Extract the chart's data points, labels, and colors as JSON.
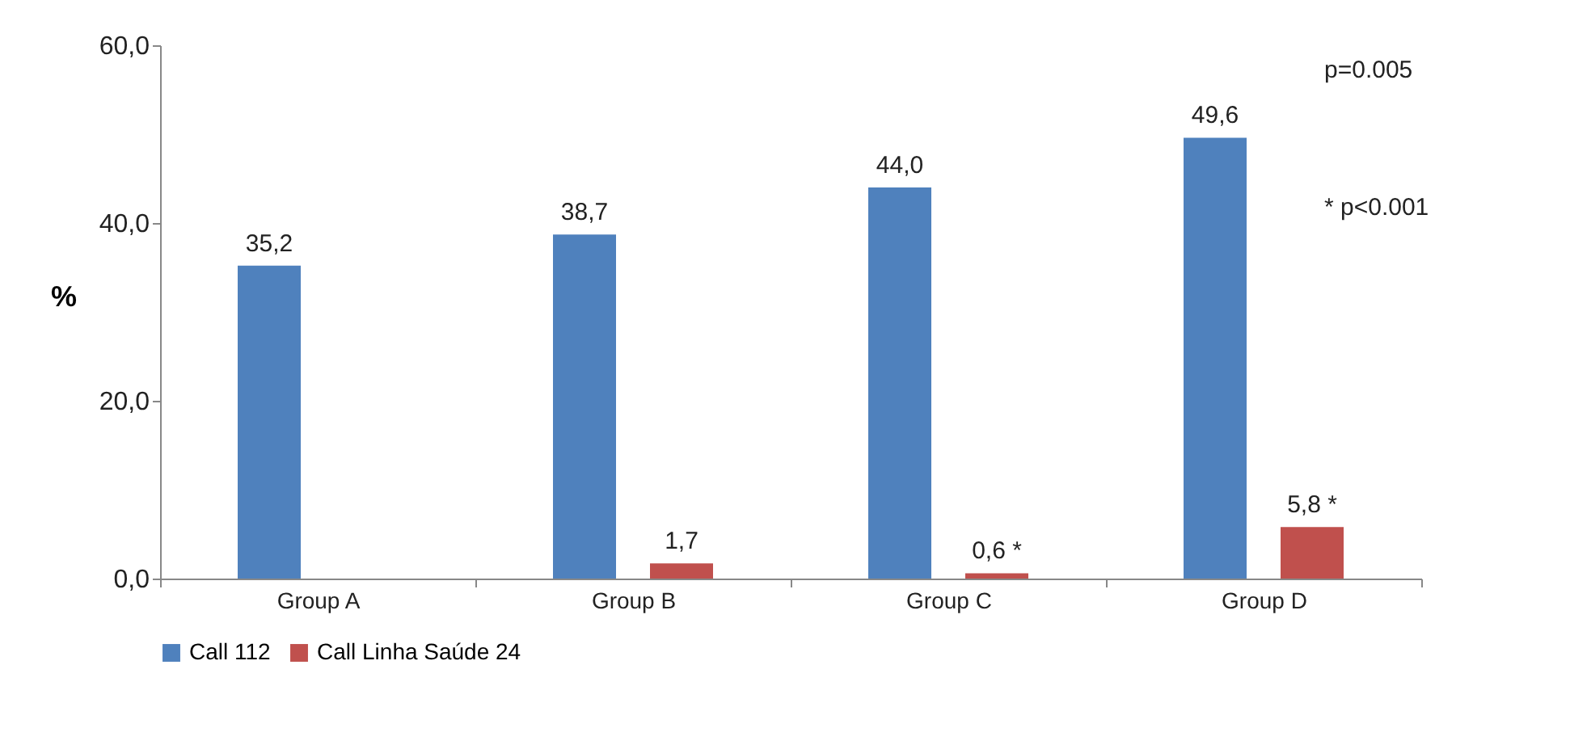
{
  "chart_data": {
    "type": "bar",
    "ylabel": "%",
    "categories": [
      "Group A",
      "Group B",
      "Group C",
      "Group D"
    ],
    "series": [
      {
        "name": "Call 112",
        "color": "#4f81bd",
        "values": [
          35.2,
          38.7,
          44.0,
          49.6
        ],
        "value_labels": [
          "35,2",
          "38,7",
          "44,0",
          "49,6"
        ]
      },
      {
        "name": "Call Linha Saúde 24",
        "color": "#c0504d",
        "values": [
          null,
          1.7,
          0.6,
          5.8
        ],
        "value_labels": [
          null,
          "1,7",
          "0,6 *",
          "5,8 *"
        ]
      }
    ],
    "ylim": [
      0,
      60
    ],
    "yticks": [
      {
        "value": 0,
        "label": "0,0"
      },
      {
        "value": 20,
        "label": "20,0"
      },
      {
        "value": 40,
        "label": "40,0"
      },
      {
        "value": 60,
        "label": "60,0"
      }
    ],
    "grid": false,
    "legend": "bottom",
    "annotations": [
      "p=0.005",
      "* p<0.001"
    ]
  }
}
